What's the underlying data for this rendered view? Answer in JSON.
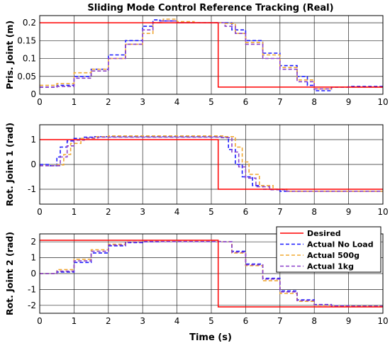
{
  "figure": {
    "title": "Sliding Mode Control Reference Tracking (Real)",
    "xlabel": "Time (s)"
  },
  "series_colors": {
    "Desired": "#ff0000",
    "Actual No Load": "#1a1aff",
    "Actual 500g": "#f0a830",
    "Actual 1kg": "#8b40c9"
  },
  "legend": {
    "placement": "top-right of bottom panel",
    "entries": [
      "Desired",
      "Actual No Load",
      "Actual 500g",
      "Actual 1kg"
    ]
  },
  "chart_data": [
    {
      "type": "line",
      "title": "Sliding Mode Control Reference Tracking (Real)",
      "xlabel": "",
      "ylabel": "Pris. Joint (m)",
      "xlim": [
        0,
        10
      ],
      "ylim": [
        0,
        0.22
      ],
      "xticks": [
        0,
        1,
        2,
        3,
        4,
        5,
        6,
        7,
        8,
        9,
        10
      ],
      "yticks": [
        0,
        0.05,
        0.1,
        0.15,
        0.2
      ],
      "ytick_labels": [
        "0",
        "0.05",
        "0.1",
        "0.15",
        "0.2"
      ],
      "grid": true,
      "series": [
        {
          "name": "Desired",
          "style": "solid",
          "x": [
            0,
            5.2,
            5.2,
            10
          ],
          "y": [
            0.2,
            0.2,
            0.02,
            0.02
          ]
        },
        {
          "name": "Actual No Load",
          "style": "dashed",
          "x": [
            0,
            0.5,
            1,
            1.5,
            2,
            2.5,
            3,
            3.3,
            3.5,
            4,
            4.5,
            5,
            5.3,
            5.6,
            6,
            6.5,
            7,
            7.5,
            7.8,
            8,
            8.5,
            9,
            10
          ],
          "y": [
            0.02,
            0.025,
            0.05,
            0.07,
            0.11,
            0.15,
            0.19,
            0.208,
            0.205,
            0.2,
            0.2,
            0.2,
            0.2,
            0.18,
            0.15,
            0.115,
            0.08,
            0.05,
            0.025,
            0.01,
            0.02,
            0.022,
            0.02
          ]
        },
        {
          "name": "Actual 500g",
          "style": "dashed",
          "x": [
            0,
            0.5,
            1,
            1.5,
            2,
            2.5,
            3,
            3.3,
            3.6,
            4,
            4.5,
            5,
            5.4,
            5.7,
            6,
            6.5,
            7,
            7.5,
            8,
            8.5,
            9,
            10
          ],
          "y": [
            0.025,
            0.03,
            0.06,
            0.07,
            0.1,
            0.14,
            0.17,
            0.2,
            0.21,
            0.203,
            0.2,
            0.2,
            0.198,
            0.17,
            0.145,
            0.11,
            0.075,
            0.04,
            0.015,
            0.02,
            0.02,
            0.02
          ]
        },
        {
          "name": "Actual 1kg",
          "style": "dashed",
          "x": [
            0,
            0.5,
            1,
            1.5,
            2,
            2.5,
            3,
            3.3,
            3.5,
            4,
            4.5,
            5,
            5.4,
            5.7,
            6,
            6.5,
            7,
            7.5,
            8,
            8.5,
            9,
            10
          ],
          "y": [
            0.02,
            0.022,
            0.045,
            0.065,
            0.1,
            0.14,
            0.18,
            0.2,
            0.205,
            0.2,
            0.2,
            0.2,
            0.19,
            0.17,
            0.14,
            0.1,
            0.07,
            0.035,
            0.015,
            0.02,
            0.02,
            0.02
          ]
        }
      ]
    },
    {
      "type": "line",
      "title": "",
      "xlabel": "",
      "ylabel": "Rot. Joint 1 (rad)",
      "xlim": [
        0,
        10
      ],
      "ylim": [
        -1.6,
        1.6
      ],
      "xticks": [
        0,
        1,
        2,
        3,
        4,
        5,
        6,
        7,
        8,
        9,
        10
      ],
      "yticks": [
        -1,
        0,
        1
      ],
      "ytick_labels": [
        "-1",
        "0",
        "1"
      ],
      "grid": true,
      "series": [
        {
          "name": "Desired",
          "style": "solid",
          "x": [
            0,
            5.2,
            5.2,
            10
          ],
          "y": [
            1,
            1,
            -1,
            -1
          ]
        },
        {
          "name": "Actual No Load",
          "style": "dashed",
          "x": [
            0,
            0.3,
            0.5,
            0.6,
            0.8,
            1,
            1.3,
            1.6,
            2,
            3,
            4,
            5,
            5.3,
            5.5,
            5.7,
            5.9,
            6.2,
            6.5,
            7,
            8,
            9,
            10
          ],
          "y": [
            0,
            -0.05,
            0.3,
            0.7,
            0.95,
            1.05,
            1.1,
            1.12,
            1.12,
            1.12,
            1.12,
            1.12,
            1.1,
            0.6,
            0.0,
            -0.5,
            -0.85,
            -1.0,
            -1.08,
            -1.08,
            -1.08,
            -1.08
          ]
        },
        {
          "name": "Actual 500g",
          "style": "dashed",
          "x": [
            0,
            0.5,
            0.7,
            0.9,
            1.2,
            1.6,
            2,
            3,
            4,
            5,
            5.4,
            5.7,
            5.9,
            6.1,
            6.4,
            6.8,
            7.2,
            8,
            9,
            10
          ],
          "y": [
            -0.05,
            -0.02,
            0.4,
            0.85,
            1.05,
            1.12,
            1.15,
            1.15,
            1.15,
            1.15,
            1.12,
            0.7,
            0.1,
            -0.4,
            -0.85,
            -1.0,
            -1.08,
            -1.08,
            -1.08,
            -1.08
          ]
        },
        {
          "name": "Actual 1kg",
          "style": "dashed",
          "x": [
            0,
            0.4,
            0.6,
            0.8,
            1,
            1.3,
            1.7,
            2,
            3,
            4,
            5,
            5.3,
            5.6,
            5.8,
            6.0,
            6.3,
            6.7,
            7.2,
            8,
            9,
            10
          ],
          "y": [
            -0.05,
            -0.05,
            0.3,
            0.75,
            0.98,
            1.07,
            1.1,
            1.1,
            1.1,
            1.1,
            1.1,
            1.08,
            0.5,
            -0.1,
            -0.55,
            -0.9,
            -1.02,
            -1.08,
            -1.08,
            -1.08,
            -1.08
          ]
        }
      ]
    },
    {
      "type": "line",
      "title": "",
      "xlabel": "Time (s)",
      "ylabel": "Rot. Joint 2 (rad)",
      "xlim": [
        0,
        10
      ],
      "ylim": [
        -2.5,
        2.5
      ],
      "xticks": [
        0,
        1,
        2,
        3,
        4,
        5,
        6,
        7,
        8,
        9,
        10
      ],
      "yticks": [
        -2,
        -1,
        0,
        1,
        2
      ],
      "ytick_labels": [
        "-2",
        "-1",
        "0",
        "1",
        "2"
      ],
      "grid": true,
      "series": [
        {
          "name": "Desired",
          "style": "solid",
          "x": [
            0,
            5.2,
            5.2,
            10
          ],
          "y": [
            2.1,
            2.1,
            -2.1,
            -2.1
          ]
        },
        {
          "name": "Actual No Load",
          "style": "dashed",
          "x": [
            0,
            0.5,
            1,
            1.5,
            2,
            2.5,
            3,
            3.5,
            4,
            4.5,
            5,
            5.3,
            5.6,
            6,
            6.5,
            7,
            7.5,
            8,
            8.5,
            9,
            10
          ],
          "y": [
            0,
            0.1,
            0.7,
            1.3,
            1.75,
            1.95,
            2.0,
            2.02,
            2.02,
            2.02,
            2.02,
            2.0,
            1.4,
            0.6,
            -0.3,
            -1.1,
            -1.65,
            -1.95,
            -2.03,
            -2.05,
            -2.05
          ]
        },
        {
          "name": "Actual 500g",
          "style": "dashed",
          "x": [
            0,
            0.5,
            1,
            1.5,
            2,
            2.5,
            3,
            3.5,
            4,
            4.5,
            5,
            5.3,
            5.6,
            6,
            6.5,
            7,
            7.5,
            8,
            8.5,
            9,
            10
          ],
          "y": [
            0,
            0.25,
            0.9,
            1.5,
            1.85,
            2.0,
            2.03,
            2.03,
            2.03,
            2.03,
            2.03,
            2.0,
            1.3,
            0.5,
            -0.45,
            -1.25,
            -1.75,
            -2.0,
            -2.05,
            -2.05,
            -2.05
          ]
        },
        {
          "name": "Actual 1kg",
          "style": "dashed",
          "x": [
            0,
            0.5,
            1,
            1.5,
            2,
            2.5,
            3,
            3.5,
            4,
            4.5,
            5,
            5.3,
            5.6,
            6,
            6.5,
            7,
            7.5,
            8,
            8.5,
            9,
            10
          ],
          "y": [
            0,
            0.15,
            0.8,
            1.4,
            1.8,
            1.98,
            2.02,
            2.02,
            2.02,
            2.02,
            2.02,
            2.0,
            1.35,
            0.55,
            -0.35,
            -1.15,
            -1.7,
            -1.97,
            -2.04,
            -2.05,
            -2.05
          ]
        }
      ]
    }
  ]
}
